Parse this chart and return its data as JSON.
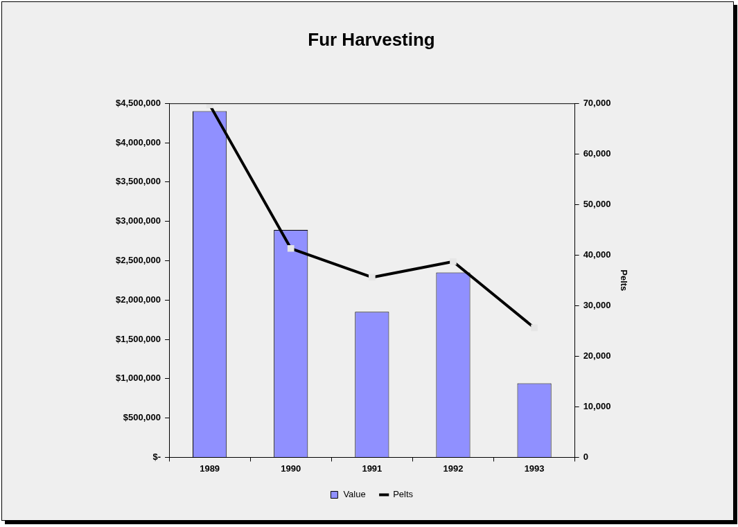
{
  "chart_data": {
    "type": "bar",
    "title": "Fur Harvesting",
    "y2label": "Pelts",
    "categories": [
      "1989",
      "1990",
      "1991",
      "1992",
      "1993"
    ],
    "series": [
      {
        "name": "Value",
        "color": "#9090ff",
        "values": [
          4400000,
          2890000,
          1850000,
          2350000,
          940000
        ]
      },
      {
        "name": "Pelts",
        "type": "line",
        "axis": "y2",
        "color": "#000000",
        "values": [
          69700,
          41300,
          35600,
          38700,
          25600
        ]
      }
    ],
    "ylim": [
      0,
      4500000
    ],
    "yticks": [
      {
        "value": 0,
        "label": "$-"
      },
      {
        "value": 500000,
        "label": "$500,000"
      },
      {
        "value": 1000000,
        "label": "$1,000,000"
      },
      {
        "value": 1500000,
        "label": "$1,500,000"
      },
      {
        "value": 2000000,
        "label": "$2,000,000"
      },
      {
        "value": 2500000,
        "label": "$2,500,000"
      },
      {
        "value": 3000000,
        "label": "$3,000,000"
      },
      {
        "value": 3500000,
        "label": "$3,500,000"
      },
      {
        "value": 4000000,
        "label": "$4,000,000"
      },
      {
        "value": 4500000,
        "label": "$4,500,000"
      }
    ],
    "y2lim": [
      0,
      70000
    ],
    "y2ticks": [
      0,
      {
        "value": 10000,
        "label": "10,000"
      },
      {
        "value": 20000,
        "label": "20,000"
      },
      {
        "value": 30000,
        "label": "30,000"
      },
      {
        "value": 40000,
        "label": "40,000"
      },
      {
        "value": 50000,
        "label": "50,000"
      },
      {
        "value": 60000,
        "label": "60,000"
      },
      {
        "value": 70000,
        "label": "70,000"
      }
    ],
    "grid": false,
    "legend": "bottom",
    "marker": "square",
    "line_style": "solid"
  }
}
